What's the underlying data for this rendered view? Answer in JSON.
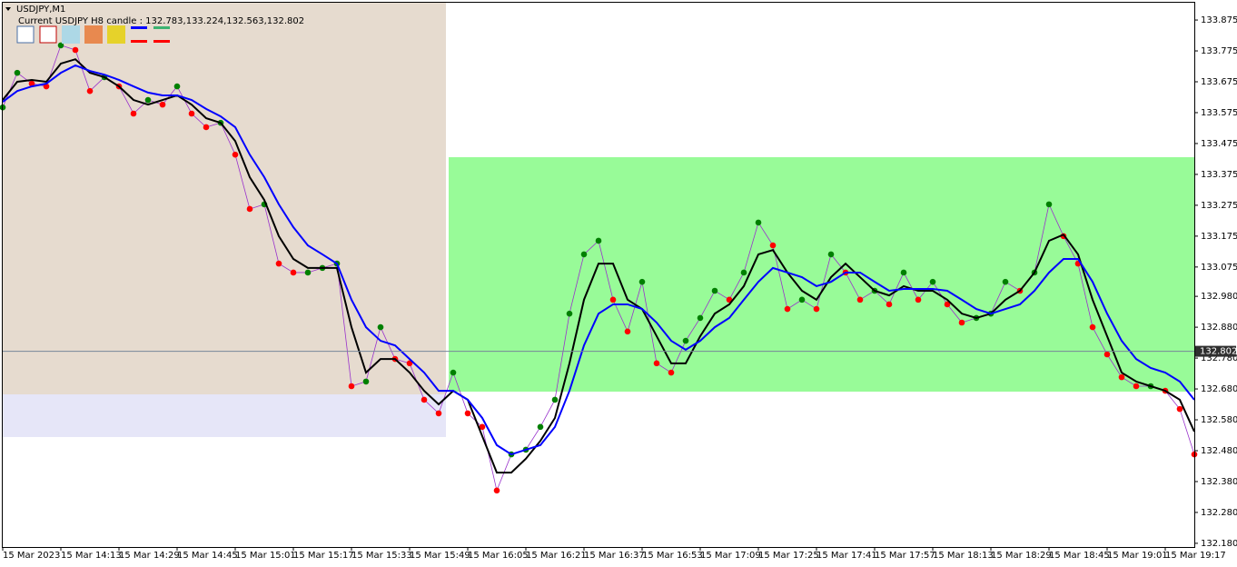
{
  "chart_data": {
    "type": "line",
    "title": "USDJPY,M1",
    "subtitle": "Current USDJPY H8 candle : 132.783,133.224,132.563,132.802",
    "categories": [
      "15 Mar 2023",
      null,
      null,
      null,
      "15 Mar 14:13",
      null,
      null,
      null,
      "15 Mar 14:29",
      null,
      null,
      null,
      "15 Mar 14:45",
      null,
      null,
      null,
      "15 Mar 15:01",
      null,
      null,
      null,
      "15 Mar 15:17",
      null,
      null,
      null,
      "15 Mar 15:33",
      null,
      null,
      null,
      "15 Mar 15:49",
      null,
      null,
      null,
      "15 Mar 16:05",
      null,
      null,
      null,
      "15 Mar 16:21",
      null,
      null,
      null,
      "15 Mar 16:37",
      null,
      null,
      null,
      "15 Mar 16:53",
      null,
      null,
      null,
      "15 Mar 17:09",
      null,
      null,
      null,
      "15 Mar 17:25",
      null,
      null,
      null,
      "15 Mar 17:41",
      null,
      null,
      null,
      "15 Mar 17:57",
      null,
      null,
      null,
      "15 Mar 18:13",
      null,
      null,
      null,
      "15 Mar 18:29",
      null,
      null,
      null,
      "15 Mar 18:45",
      null,
      null,
      null,
      "15 Mar 19:01",
      null,
      null,
      null,
      "15 Mar 19:17",
      null,
      null
    ],
    "series": [
      {
        "color": "#9932cc",
        "dots": true,
        "values": [
          133.592,
          133.704,
          133.669,
          133.66,
          133.793,
          133.778,
          133.645,
          133.69,
          133.66,
          133.572,
          133.616,
          133.601,
          133.66,
          133.572,
          133.528,
          133.542,
          133.439,
          133.263,
          133.278,
          133.086,
          133.057,
          133.057,
          133.072,
          133.086,
          132.689,
          132.704,
          132.88,
          132.777,
          132.763,
          132.645,
          132.601,
          132.733,
          132.601,
          132.557,
          132.351,
          132.468,
          132.483,
          132.557,
          132.645,
          132.924,
          133.116,
          133.16,
          132.969,
          132.866,
          133.027,
          132.763,
          132.733,
          132.836,
          132.91,
          132.998,
          132.969,
          133.057,
          133.219,
          133.145,
          132.939,
          132.969,
          132.939,
          133.116,
          133.057,
          132.969,
          132.998,
          132.954,
          133.057,
          132.969,
          133.027,
          132.954,
          132.895,
          132.91,
          132.924,
          133.027,
          132.998,
          133.057,
          133.278,
          133.175,
          133.086,
          132.88,
          132.792,
          132.718,
          132.689,
          132.689,
          132.674,
          132.615,
          132.468
        ]
      },
      {
        "color": "#000000",
        "values": [
          133.616,
          133.675,
          133.681,
          133.675,
          133.734,
          133.748,
          133.704,
          133.69,
          133.66,
          133.616,
          133.601,
          133.616,
          133.631,
          133.601,
          133.557,
          133.542,
          133.483,
          133.366,
          133.292,
          133.175,
          133.101,
          133.072,
          133.072,
          133.072,
          132.88,
          132.733,
          132.777,
          132.777,
          132.733,
          132.674,
          132.63,
          132.674,
          132.645,
          132.527,
          132.409,
          132.409,
          132.454,
          132.512,
          132.586,
          132.763,
          132.969,
          133.086,
          133.086,
          132.969,
          132.939,
          132.851,
          132.763,
          132.763,
          132.851,
          132.924,
          132.954,
          133.013,
          133.116,
          133.13,
          133.057,
          132.998,
          132.969,
          133.042,
          133.086,
          133.042,
          132.998,
          132.983,
          133.013,
          132.998,
          132.998,
          132.969,
          132.924,
          132.91,
          132.924,
          132.969,
          132.998,
          133.057,
          133.16,
          133.18,
          133.116,
          132.969,
          132.851,
          132.733,
          132.704,
          132.689,
          132.674,
          132.645,
          132.542
        ]
      },
      {
        "color": "#0000ff",
        "values": [
          133.61,
          133.645,
          133.66,
          133.669,
          133.704,
          133.728,
          133.71,
          133.698,
          133.681,
          133.66,
          133.64,
          133.631,
          133.631,
          133.616,
          133.587,
          133.563,
          133.528,
          133.439,
          133.366,
          133.278,
          133.204,
          133.145,
          133.116,
          133.086,
          132.969,
          132.88,
          132.836,
          132.821,
          132.777,
          132.733,
          132.674,
          132.674,
          132.645,
          132.586,
          132.498,
          132.468,
          132.483,
          132.498,
          132.557,
          132.674,
          132.821,
          132.924,
          132.954,
          132.954,
          132.939,
          132.895,
          132.836,
          132.807,
          132.836,
          132.88,
          132.91,
          132.969,
          133.027,
          133.072,
          133.057,
          133.042,
          133.013,
          133.027,
          133.057,
          133.057,
          133.027,
          132.998,
          133.004,
          133.004,
          133.004,
          132.998,
          132.969,
          132.939,
          132.924,
          132.939,
          132.954,
          132.998,
          133.057,
          133.101,
          133.101,
          133.027,
          132.924,
          132.836,
          132.777,
          132.748,
          132.733,
          132.704,
          132.645
        ]
      }
    ],
    "up_color": "#008000",
    "down_color": "#ff0000",
    "current_price": 132.802,
    "ylim": [
      132.168,
      133.934
    ],
    "yticks": [
      {
        "value": 132.18,
        "label": "132.180"
      },
      {
        "value": 132.28,
        "label": "132.280"
      },
      {
        "value": 132.38,
        "label": "132.380"
      },
      {
        "value": 132.48,
        "label": "132.480"
      },
      {
        "value": 132.58,
        "label": "132.580"
      },
      {
        "value": 132.68,
        "label": "132.680"
      },
      {
        "value": 132.78,
        "label": "132.780"
      },
      {
        "value": 132.88,
        "label": "132.880"
      },
      {
        "value": 132.98,
        "label": "132.980"
      },
      133.075,
      133.175,
      133.275,
      133.375,
      133.475,
      133.575,
      133.675,
      133.775,
      133.875
    ]
  }
}
